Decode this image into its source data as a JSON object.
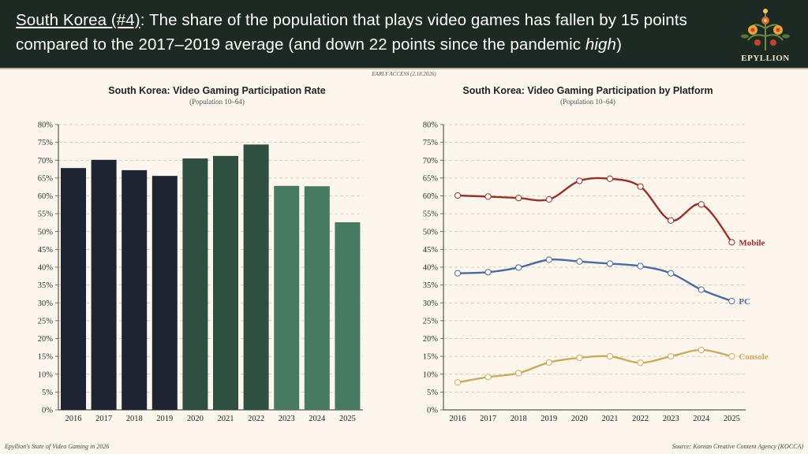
{
  "header": {
    "headline_country": "South Korea (#4)",
    "headline_rest_1": ": The share of the population that plays video games has fallen by 15 points compared to the 2017–2019 average (and down 22 points since the pandemic ",
    "headline_italic": "high",
    "headline_rest_2": ")",
    "logo_text": "EPYLLION"
  },
  "early_access": "EARLY ACCESS (2.18.2026)",
  "footer": {
    "left": "Epyllion's State of Video Gaming in 2026",
    "right": "Source: Korean Creative Content Agency (KOCCA)"
  },
  "chart_data": [
    {
      "type": "bar",
      "title": "South Korea: Video Gaming Participation Rate",
      "subtitle": "(Population 10–64)",
      "categories": [
        "2016",
        "2017",
        "2018",
        "2019",
        "2020",
        "2021",
        "2022",
        "2023",
        "2024",
        "2025"
      ],
      "values": [
        67.8,
        70.1,
        67.2,
        65.6,
        70.5,
        71.2,
        74.4,
        62.8,
        62.7,
        52.6
      ],
      "bar_colors": [
        "#1f2433",
        "#1f2433",
        "#1f2433",
        "#1f2433",
        "#2f4f41",
        "#2f4f41",
        "#2f4f41",
        "#467a61",
        "#467a61",
        "#467a61"
      ],
      "ylim": [
        0,
        80
      ],
      "yticks": [
        "0%",
        "5%",
        "10%",
        "15%",
        "20%",
        "25%",
        "30%",
        "35%",
        "40%",
        "45%",
        "50%",
        "55%",
        "60%",
        "65%",
        "70%",
        "75%",
        "80%"
      ],
      "grid": true
    },
    {
      "type": "line",
      "title": "South Korea: Video Gaming Participation by Platform",
      "subtitle": "(Population 10–64)",
      "categories": [
        "2016",
        "2017",
        "2018",
        "2019",
        "2020",
        "2021",
        "2022",
        "2023",
        "2024",
        "2025"
      ],
      "series": [
        {
          "name": "Mobile",
          "color": "#9b2f25",
          "values": [
            60.1,
            59.8,
            59.4,
            59.0,
            64.2,
            64.8,
            62.6,
            53.1,
            57.6,
            47.0
          ]
        },
        {
          "name": "PC",
          "color": "#4a6aa5",
          "values": [
            38.3,
            38.6,
            39.9,
            42.1,
            41.6,
            41.0,
            40.3,
            38.3,
            33.7,
            30.5
          ]
        },
        {
          "name": "Console",
          "color": "#cfa95a",
          "values": [
            7.7,
            9.2,
            10.3,
            13.3,
            14.6,
            15.0,
            13.2,
            15.0,
            16.8,
            15.0
          ]
        }
      ],
      "ylim": [
        0,
        80
      ],
      "yticks": [
        "0%",
        "5%",
        "10%",
        "15%",
        "20%",
        "25%",
        "30%",
        "35%",
        "40%",
        "45%",
        "50%",
        "55%",
        "60%",
        "65%",
        "70%",
        "75%",
        "80%"
      ],
      "grid": true,
      "legend": "end-of-line labels"
    }
  ]
}
